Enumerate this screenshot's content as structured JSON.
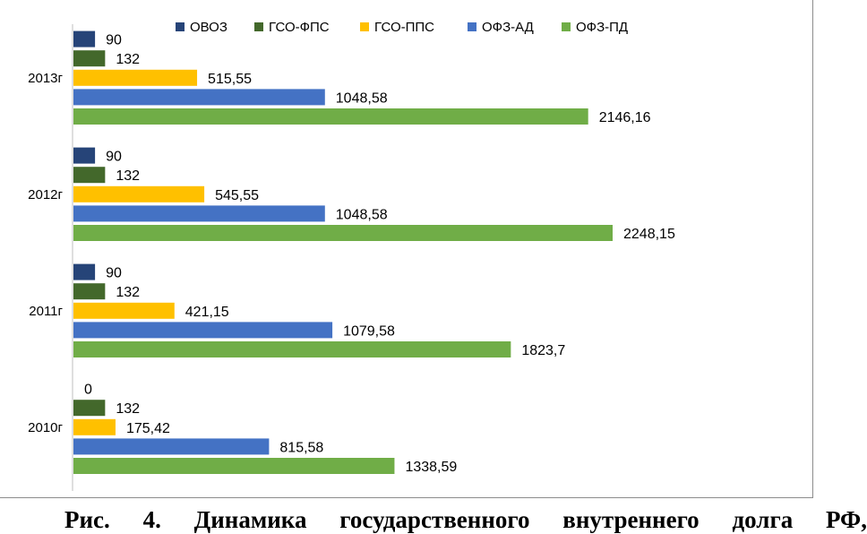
{
  "caption": "Рис. 4. Динамика государственного внутреннего долга РФ,",
  "chart_data": {
    "type": "bar",
    "orientation": "horizontal",
    "categories": [
      "2010г",
      "2011г",
      "2012г",
      "2013г"
    ],
    "series": [
      {
        "name": "ОВОЗ",
        "color": "#264478",
        "values": [
          0,
          90,
          90,
          90
        ],
        "labels": [
          "0",
          "90",
          "90",
          "90"
        ]
      },
      {
        "name": "ГСО-ФПС",
        "color": "#43682B",
        "values": [
          132,
          132,
          132,
          132
        ],
        "labels": [
          "132",
          "132",
          "132",
          "132"
        ]
      },
      {
        "name": "ГСО-ППС",
        "color": "#FFC000",
        "values": [
          175.42,
          421.15,
          545.55,
          515.55
        ],
        "labels": [
          "175,42",
          "421,15",
          "545,55",
          "515,55"
        ]
      },
      {
        "name": "ОФЗ-АД",
        "color": "#4472C4",
        "values": [
          815.58,
          1079.58,
          1048.58,
          1048.58
        ],
        "labels": [
          "815,58",
          "1079,58",
          "1048,58",
          "1048,58"
        ]
      },
      {
        "name": "ОФЗ-ПД",
        "color": "#70AD47",
        "values": [
          1338.59,
          1823.7,
          2248.15,
          2146.16
        ],
        "labels": [
          "1338,59",
          "1823,7",
          "2248,15",
          "2146,16"
        ]
      }
    ],
    "legend_position": "top",
    "grid": false
  }
}
